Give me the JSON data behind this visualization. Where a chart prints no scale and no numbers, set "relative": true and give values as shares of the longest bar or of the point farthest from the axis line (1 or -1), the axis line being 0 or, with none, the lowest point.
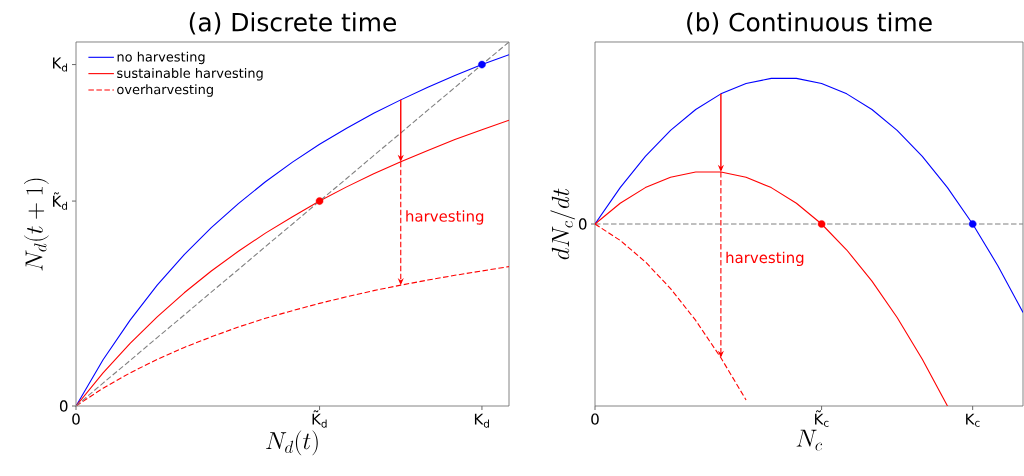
{
  "chart_data": [
    {
      "type": "line",
      "title": "(a) Discrete time",
      "xlabel": "N_d(t)",
      "ylabel": "N_d(t+1)",
      "relative": true,
      "legend": "top left",
      "categories": [
        "0",
        null,
        null,
        null,
        null,
        null,
        null,
        null,
        null,
        "K̃$_{d}$",
        null,
        null,
        null,
        null,
        null,
        "K$_{d}$",
        null
      ],
      "series": [
        {
          "name": "no harvesting",
          "color": "#0000ff",
          "values": [
            0,
            0.127,
            0.236,
            0.332,
            0.416,
            0.49,
            0.556,
            0.616,
            0.67,
            0.719,
            0.763,
            0.804,
            0.841,
            0.876,
            0.908,
            0.938,
            0.965
          ]
        },
        {
          "name": "sustainable harvesting",
          "color": "#ff0000",
          "values": [
            0,
            0.091,
            0.172,
            0.245,
            0.311,
            0.371,
            0.425,
            0.475,
            0.52,
            0.563,
            0.602,
            0.638,
            0.671,
            0.702,
            0.732,
            0.759,
            0.785
          ]
        },
        {
          "name": "overharvesting",
          "color": "#ff0000",
          "line_style": "dashed",
          "values": [
            0,
            0.049,
            0.091,
            0.128,
            0.161,
            0.19,
            0.217,
            0.241,
            0.262,
            0.282,
            0.3,
            0.317,
            0.332,
            0.346,
            0.359,
            0.371,
            0.383
          ]
        },
        {
          "color": "#808080",
          "line_style": "dashed",
          "values": [
            0,
            0.063,
            0.125,
            0.188,
            0.25,
            0.313,
            0.375,
            0.438,
            0.5,
            0.563,
            0.625,
            0.688,
            0.75,
            0.813,
            0.875,
            0.938,
            1
          ]
        },
        {
          "type": "scatter",
          "color": "#ff0000",
          "values": [
            null,
            null,
            null,
            null,
            null,
            null,
            null,
            null,
            null,
            0.563,
            null,
            null,
            null,
            null,
            null,
            null,
            null
          ]
        },
        {
          "type": "scatter",
          "color": "#0000ff",
          "values": [
            null,
            null,
            null,
            null,
            null,
            null,
            null,
            null,
            null,
            null,
            null,
            null,
            null,
            null,
            null,
            0.938,
            null
          ]
        }
      ],
      "annotations": [
        "harvesting",
        "0",
        "K̃$_{d}$",
        "K$_{d}$"
      ]
    },
    {
      "type": "line",
      "title": "(b) Continuous time",
      "xlabel": "N_c",
      "ylabel": "dN_c/dt",
      "relative": true,
      "categories": [
        "0",
        null,
        null,
        null,
        null,
        null,
        null,
        null,
        null,
        "K̃$_{c}$",
        null,
        null,
        null,
        null,
        null,
        "K$_{c}$",
        null,
        null
      ],
      "series": [
        {
          "color": "#0000ff",
          "values": [
            0,
            0.2,
            0.372,
            0.514,
            0.629,
            0.715,
            0.772,
            0.8,
            0.8,
            0.772,
            0.715,
            0.629,
            0.514,
            0.372,
            0.2,
            0,
            -0.229,
            -0.486
          ]
        },
        {
          "color": "#ff0000",
          "values": [
            0,
            0.114,
            0.2,
            0.257,
            0.286,
            0.286,
            0.257,
            0.2,
            0.114,
            0,
            -0.143,
            -0.314,
            -0.514,
            -0.743,
            -1,
            null,
            null,
            null
          ]
        },
        {
          "color": "#ff0000",
          "line_style": "dashed",
          "values": [
            0,
            -0.09,
            -0.208,
            -0.355,
            -0.53,
            -0.735,
            -0.967,
            null,
            null,
            null,
            null,
            null,
            null,
            null,
            null,
            null,
            null,
            null
          ]
        },
        {
          "type": "scatter",
          "color": "#ff0000",
          "values": [
            null,
            null,
            null,
            null,
            null,
            null,
            null,
            null,
            null,
            0,
            null,
            null,
            null,
            null,
            null,
            null,
            null,
            null
          ]
        },
        {
          "type": "scatter",
          "color": "#0000ff",
          "values": [
            null,
            null,
            null,
            null,
            null,
            null,
            null,
            null,
            null,
            null,
            null,
            null,
            null,
            null,
            null,
            0,
            null,
            null
          ]
        }
      ],
      "ref_lines": [
        {
          "axis": "y",
          "value": 0,
          "color": "#808080",
          "line_style": "dashed"
        }
      ],
      "annotations": [
        "harvesting",
        "0"
      ]
    }
  ]
}
